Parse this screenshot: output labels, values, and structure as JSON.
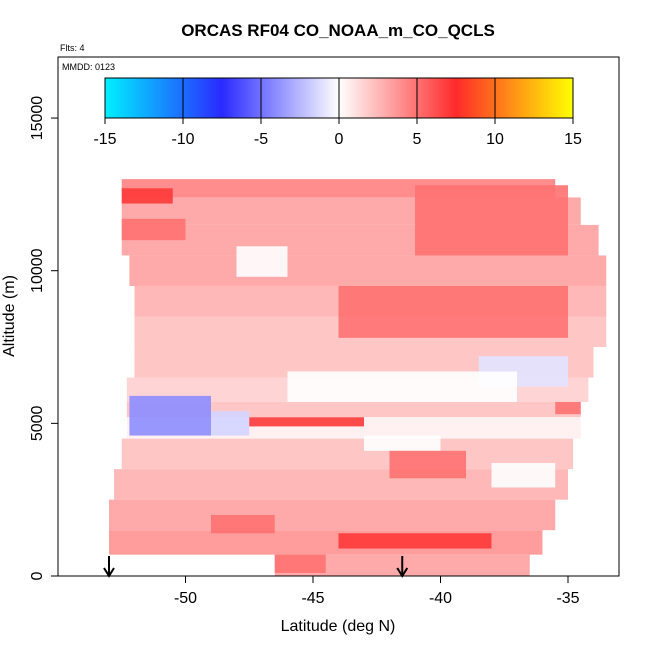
{
  "chart_data": {
    "type": "heatmap",
    "title": "ORCAS RF04 CO_NOAA_m_CO_QCLS",
    "flights_label": "Flts: 4",
    "date_label": "MMDD: 0123",
    "xlabel": "Latitude (deg N)",
    "ylabel": "Altitude (m)",
    "xlim": [
      -55,
      -33
    ],
    "ylim": [
      0,
      17000
    ],
    "x_ticks": [
      "-50",
      "-45",
      "-40",
      "-35"
    ],
    "x_tick_values": [
      -50,
      -45,
      -40,
      -35
    ],
    "y_ticks": [
      "0",
      "5000",
      "10000",
      "15000"
    ],
    "y_tick_values": [
      0,
      5000,
      10000,
      15000
    ],
    "colorbar": {
      "ticks": [
        "-15",
        "-10",
        "-5",
        "0",
        "5",
        "10",
        "15"
      ],
      "tick_values": [
        -15,
        -10,
        -5,
        0,
        5,
        10,
        15
      ],
      "colors": [
        "#00f0ff",
        "#2a2aff",
        "#ffffff",
        "#ff2a2a",
        "#ffff00"
      ]
    },
    "arrows_latitude": [
      -53,
      -41.5
    ],
    "layers": [
      {
        "alt": [
          12400,
          13000
        ],
        "lat": [
          -52.5,
          -35.5
        ],
        "value": 4
      },
      {
        "alt": [
          11500,
          12400
        ],
        "lat": [
          -52.5,
          -34.5
        ],
        "value": 3
      },
      {
        "alt": [
          10500,
          11500
        ],
        "lat": [
          -52.5,
          -33.8
        ],
        "value": 3
      },
      {
        "alt": [
          9500,
          10500
        ],
        "lat": [
          -52.2,
          -33.5
        ],
        "value": 3
      },
      {
        "alt": [
          8500,
          9500
        ],
        "lat": [
          -52.0,
          -33.5
        ],
        "value": 2.5
      },
      {
        "alt": [
          7500,
          8500
        ],
        "lat": [
          -52.0,
          -33.5
        ],
        "value": 2
      },
      {
        "alt": [
          6500,
          7500
        ],
        "lat": [
          -52.0,
          -34.0
        ],
        "value": 2
      },
      {
        "alt": [
          5700,
          6500
        ],
        "lat": [
          -52.3,
          -34.2
        ],
        "value": 1.5
      },
      {
        "alt": [
          5200,
          5700
        ],
        "lat": [
          -52.3,
          -34.5
        ],
        "value": 2
      },
      {
        "alt": [
          4500,
          5200
        ],
        "lat": [
          -52.3,
          -34.5
        ],
        "value": 0.5
      },
      {
        "alt": [
          3500,
          4500
        ],
        "lat": [
          -52.5,
          -34.8
        ],
        "value": 2
      },
      {
        "alt": [
          2500,
          3500
        ],
        "lat": [
          -52.8,
          -35.0
        ],
        "value": 2.5
      },
      {
        "alt": [
          1500,
          2500
        ],
        "lat": [
          -53.0,
          -35.5
        ],
        "value": 3
      },
      {
        "alt": [
          700,
          1500
        ],
        "lat": [
          -53.0,
          -36.0
        ],
        "value": 3.5
      },
      {
        "alt": [
          0,
          700
        ],
        "lat": [
          -46.5,
          -36.5
        ],
        "value": 3
      }
    ],
    "features": [
      {
        "alt": [
          12200,
          12700
        ],
        "lat": [
          -52.5,
          -50.5
        ],
        "value": 7
      },
      {
        "alt": [
          11000,
          11700
        ],
        "lat": [
          -52.5,
          -50.0
        ],
        "value": 5
      },
      {
        "alt": [
          10500,
          12800
        ],
        "lat": [
          -41.0,
          -35.0
        ],
        "value": 5
      },
      {
        "alt": [
          7800,
          9500
        ],
        "lat": [
          -44.0,
          -35.0
        ],
        "value": 5
      },
      {
        "alt": [
          9800,
          10800
        ],
        "lat": [
          -48.0,
          -46.0
        ],
        "value": 0
      },
      {
        "alt": [
          6200,
          7200
        ],
        "lat": [
          -38.5,
          -35.0
        ],
        "value": -1
      },
      {
        "alt": [
          5700,
          6700
        ],
        "lat": [
          -46.0,
          -37.0
        ],
        "value": 0
      },
      {
        "alt": [
          4600,
          5900
        ],
        "lat": [
          -52.2,
          -49.0
        ],
        "value": -4
      },
      {
        "alt": [
          4600,
          5400
        ],
        "lat": [
          -49.0,
          -47.5
        ],
        "value": -1.5
      },
      {
        "alt": [
          4900,
          5200
        ],
        "lat": [
          -47.5,
          -43.0
        ],
        "value": 7
      },
      {
        "alt": [
          5300,
          5700
        ],
        "lat": [
          -35.5,
          -34.5
        ],
        "value": 5
      },
      {
        "alt": [
          4100,
          4600
        ],
        "lat": [
          -43.0,
          -40.0
        ],
        "value": 0
      },
      {
        "alt": [
          2900,
          3700
        ],
        "lat": [
          -38.0,
          -35.5
        ],
        "value": 0
      },
      {
        "alt": [
          3200,
          4100
        ],
        "lat": [
          -42.0,
          -39.0
        ],
        "value": 5
      },
      {
        "alt": [
          900,
          1400
        ],
        "lat": [
          -44.0,
          -38.0
        ],
        "value": 7
      },
      {
        "alt": [
          1400,
          2000
        ],
        "lat": [
          -49.0,
          -46.5
        ],
        "value": 5
      },
      {
        "alt": [
          100,
          700
        ],
        "lat": [
          -46.5,
          -44.5
        ],
        "value": 5
      }
    ]
  }
}
